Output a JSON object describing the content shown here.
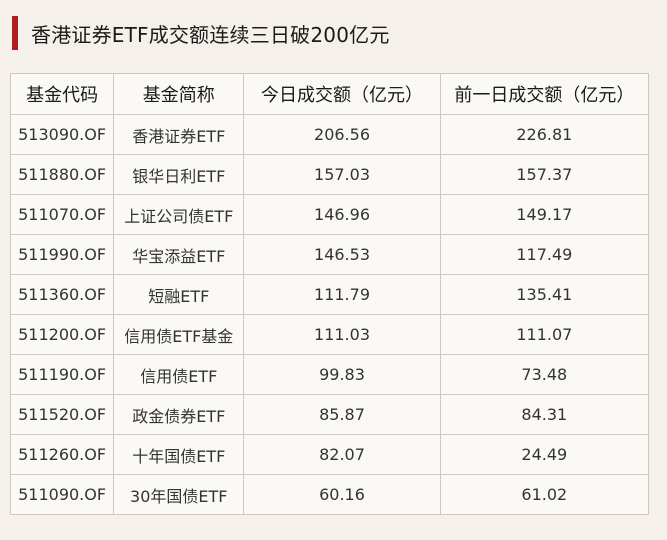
{
  "title": "香港证券ETF成交额连续三日破200亿元",
  "colors": {
    "accent": "#b01c22",
    "background": "#f5f0ea",
    "border": "#cfc8c0"
  },
  "table": {
    "headers": [
      "基金代码",
      "基金简称",
      "今日成交额（亿元）",
      "前一日成交额（亿元）"
    ],
    "rows": [
      [
        "513090.OF",
        "香港证券ETF",
        "206.56",
        "226.81"
      ],
      [
        "511880.OF",
        "银华日利ETF",
        "157.03",
        "157.37"
      ],
      [
        "511070.OF",
        "上证公司债ETF",
        "146.96",
        "149.17"
      ],
      [
        "511990.OF",
        "华宝添益ETF",
        "146.53",
        "117.49"
      ],
      [
        "511360.OF",
        "短融ETF",
        "111.79",
        "135.41"
      ],
      [
        "511200.OF",
        "信用债ETF基金",
        "111.03",
        "111.07"
      ],
      [
        "511190.OF",
        "信用债ETF",
        "99.83",
        "73.48"
      ],
      [
        "511520.OF",
        "政金债券ETF",
        "85.87",
        "84.31"
      ],
      [
        "511260.OF",
        "十年国债ETF",
        "82.07",
        "24.49"
      ],
      [
        "511090.OF",
        "30年国债ETF",
        "60.16",
        "61.02"
      ]
    ]
  }
}
